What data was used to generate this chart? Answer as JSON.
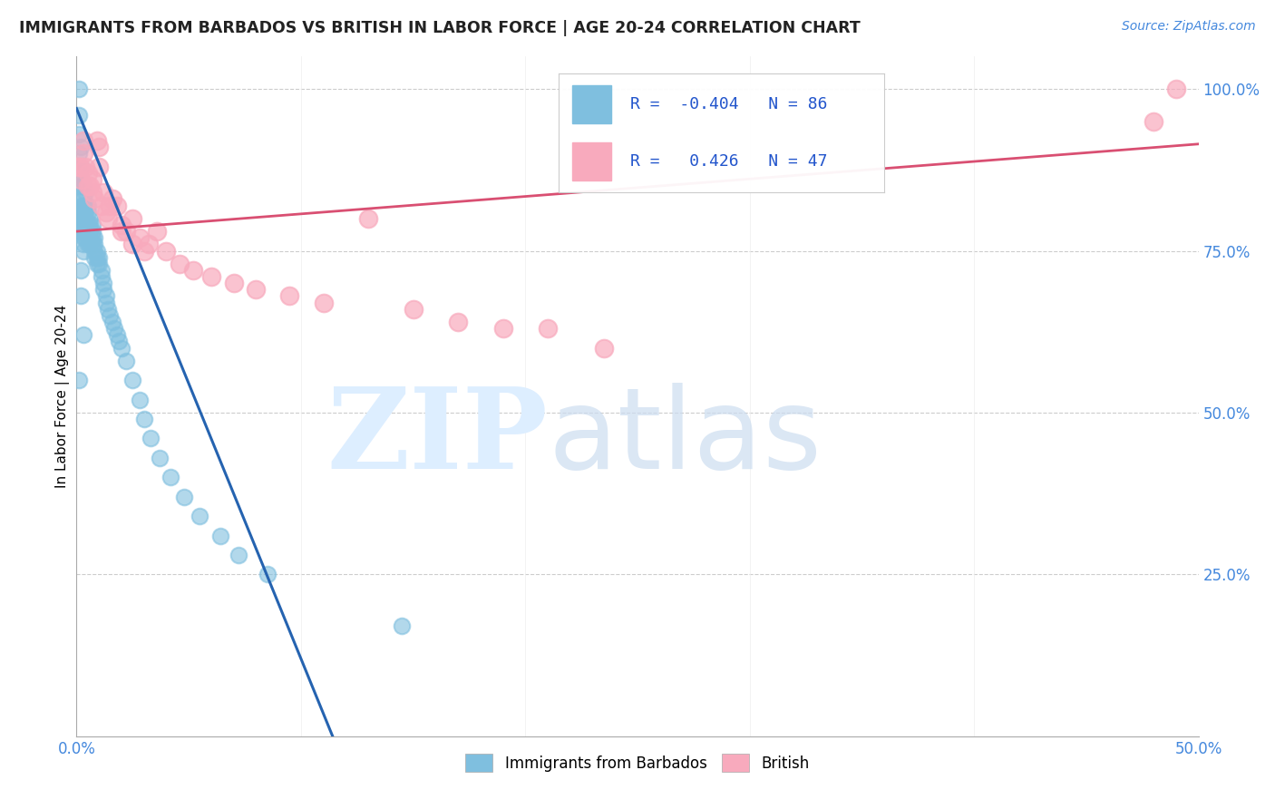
{
  "title": "IMMIGRANTS FROM BARBADOS VS BRITISH IN LABOR FORCE | AGE 20-24 CORRELATION CHART",
  "source": "Source: ZipAtlas.com",
  "ylabel": "In Labor Force | Age 20-24",
  "xlim": [
    0.0,
    0.5
  ],
  "ylim": [
    0.0,
    1.05
  ],
  "xticks": [
    0.0,
    0.1,
    0.2,
    0.3,
    0.4,
    0.5
  ],
  "xticklabels": [
    "0.0%",
    "",
    "",
    "",
    "",
    "50.0%"
  ],
  "ytick_vals": [
    0.0,
    0.25,
    0.5,
    0.75,
    1.0
  ],
  "ytick_labels": [
    "",
    "25.0%",
    "50.0%",
    "75.0%",
    "100.0%"
  ],
  "barbados_R": -0.404,
  "barbados_N": 86,
  "british_R": 0.426,
  "british_N": 47,
  "barbados_color": "#7fbfdf",
  "british_color": "#f8aabd",
  "barbados_line_color": "#2563b0",
  "british_line_color": "#d94f72",
  "legend_label_barbados": "Immigrants from Barbados",
  "legend_label_british": "British",
  "barbados_x": [
    0.001,
    0.001,
    0.001,
    0.001,
    0.001,
    0.002,
    0.002,
    0.002,
    0.002,
    0.002,
    0.002,
    0.002,
    0.002,
    0.002,
    0.003,
    0.003,
    0.003,
    0.003,
    0.003,
    0.003,
    0.003,
    0.003,
    0.003,
    0.003,
    0.004,
    0.004,
    0.004,
    0.004,
    0.004,
    0.004,
    0.004,
    0.005,
    0.005,
    0.005,
    0.005,
    0.005,
    0.005,
    0.006,
    0.006,
    0.006,
    0.006,
    0.006,
    0.007,
    0.007,
    0.007,
    0.007,
    0.008,
    0.008,
    0.008,
    0.008,
    0.009,
    0.009,
    0.009,
    0.01,
    0.01,
    0.011,
    0.011,
    0.012,
    0.012,
    0.013,
    0.013,
    0.014,
    0.015,
    0.016,
    0.017,
    0.018,
    0.019,
    0.02,
    0.022,
    0.025,
    0.028,
    0.03,
    0.033,
    0.037,
    0.042,
    0.048,
    0.055,
    0.064,
    0.072,
    0.085,
    0.001,
    0.002,
    0.002,
    0.003,
    0.001,
    0.145
  ],
  "barbados_y": [
    1.0,
    0.96,
    0.93,
    0.9,
    0.87,
    0.91,
    0.88,
    0.86,
    0.85,
    0.83,
    0.82,
    0.8,
    0.79,
    0.78,
    0.85,
    0.83,
    0.82,
    0.81,
    0.8,
    0.79,
    0.78,
    0.77,
    0.76,
    0.75,
    0.84,
    0.82,
    0.81,
    0.8,
    0.79,
    0.78,
    0.77,
    0.82,
    0.81,
    0.79,
    0.78,
    0.77,
    0.76,
    0.8,
    0.79,
    0.78,
    0.77,
    0.76,
    0.79,
    0.78,
    0.77,
    0.76,
    0.77,
    0.76,
    0.75,
    0.74,
    0.75,
    0.74,
    0.73,
    0.74,
    0.73,
    0.72,
    0.71,
    0.7,
    0.69,
    0.68,
    0.67,
    0.66,
    0.65,
    0.64,
    0.63,
    0.62,
    0.61,
    0.6,
    0.58,
    0.55,
    0.52,
    0.49,
    0.46,
    0.43,
    0.4,
    0.37,
    0.34,
    0.31,
    0.28,
    0.25,
    0.88,
    0.72,
    0.68,
    0.62,
    0.55,
    0.17
  ],
  "british_x": [
    0.001,
    0.002,
    0.003,
    0.004,
    0.005,
    0.006,
    0.007,
    0.008,
    0.009,
    0.01,
    0.011,
    0.012,
    0.013,
    0.014,
    0.016,
    0.018,
    0.02,
    0.022,
    0.025,
    0.028,
    0.032,
    0.036,
    0.04,
    0.046,
    0.052,
    0.06,
    0.07,
    0.08,
    0.095,
    0.11,
    0.13,
    0.15,
    0.17,
    0.19,
    0.21,
    0.235,
    0.002,
    0.003,
    0.005,
    0.007,
    0.01,
    0.015,
    0.02,
    0.025,
    0.03,
    0.49,
    0.48
  ],
  "british_y": [
    0.88,
    0.86,
    0.9,
    0.88,
    0.87,
    0.85,
    0.84,
    0.83,
    0.92,
    0.91,
    0.82,
    0.84,
    0.81,
    0.8,
    0.83,
    0.82,
    0.79,
    0.78,
    0.8,
    0.77,
    0.76,
    0.78,
    0.75,
    0.73,
    0.72,
    0.71,
    0.7,
    0.69,
    0.68,
    0.67,
    0.8,
    0.66,
    0.64,
    0.63,
    0.63,
    0.6,
    0.88,
    0.92,
    0.85,
    0.86,
    0.88,
    0.82,
    0.78,
    0.76,
    0.75,
    1.0,
    0.95
  ]
}
